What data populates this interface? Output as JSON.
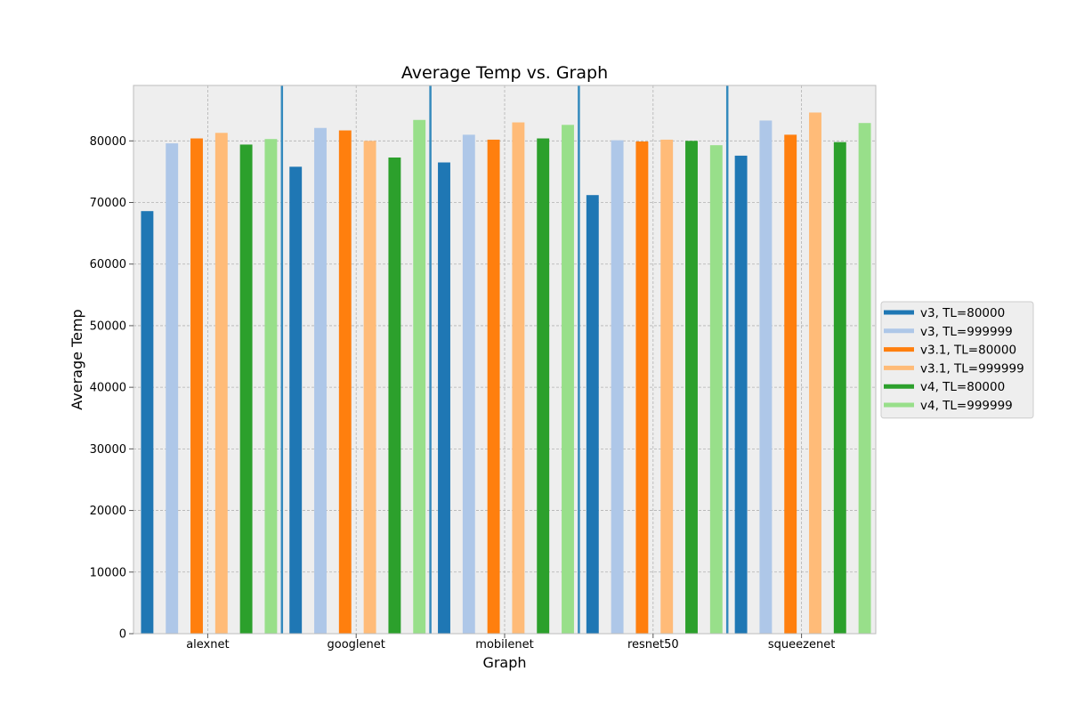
{
  "chart_data": {
    "type": "bar",
    "title": "Average Temp vs. Graph",
    "xlabel": "Graph",
    "ylabel": "Average Temp",
    "ylim": [
      0,
      89000
    ],
    "yticks": [
      0,
      10000,
      20000,
      30000,
      40000,
      50000,
      60000,
      70000,
      80000
    ],
    "grid": true,
    "legend_position": "right",
    "categories": [
      "alexnet",
      "googlenet",
      "mobilenet",
      "resnet50",
      "squeezenet"
    ],
    "series": [
      {
        "name": "v3, TL=80000",
        "color": "#1f77b4",
        "values": [
          68600,
          75800,
          76500,
          71200,
          77600
        ]
      },
      {
        "name": "v3, TL=999999",
        "color": "#aec7e8",
        "values": [
          79600,
          82100,
          81000,
          80100,
          83300
        ]
      },
      {
        "name": "v3.1, TL=80000",
        "color": "#ff7f0e",
        "values": [
          80400,
          81700,
          80200,
          79900,
          81000
        ]
      },
      {
        "name": "v3.1, TL=999999",
        "color": "#ffbb78",
        "values": [
          81300,
          80000,
          83000,
          80200,
          84600
        ]
      },
      {
        "name": "v4, TL=80000",
        "color": "#2ca02c",
        "values": [
          79400,
          77300,
          80400,
          80000,
          79800
        ]
      },
      {
        "name": "v4, TL=999999",
        "color": "#98df8a",
        "values": [
          80300,
          83400,
          82600,
          79300,
          82900
        ]
      }
    ],
    "separator_color": "#348abd"
  }
}
